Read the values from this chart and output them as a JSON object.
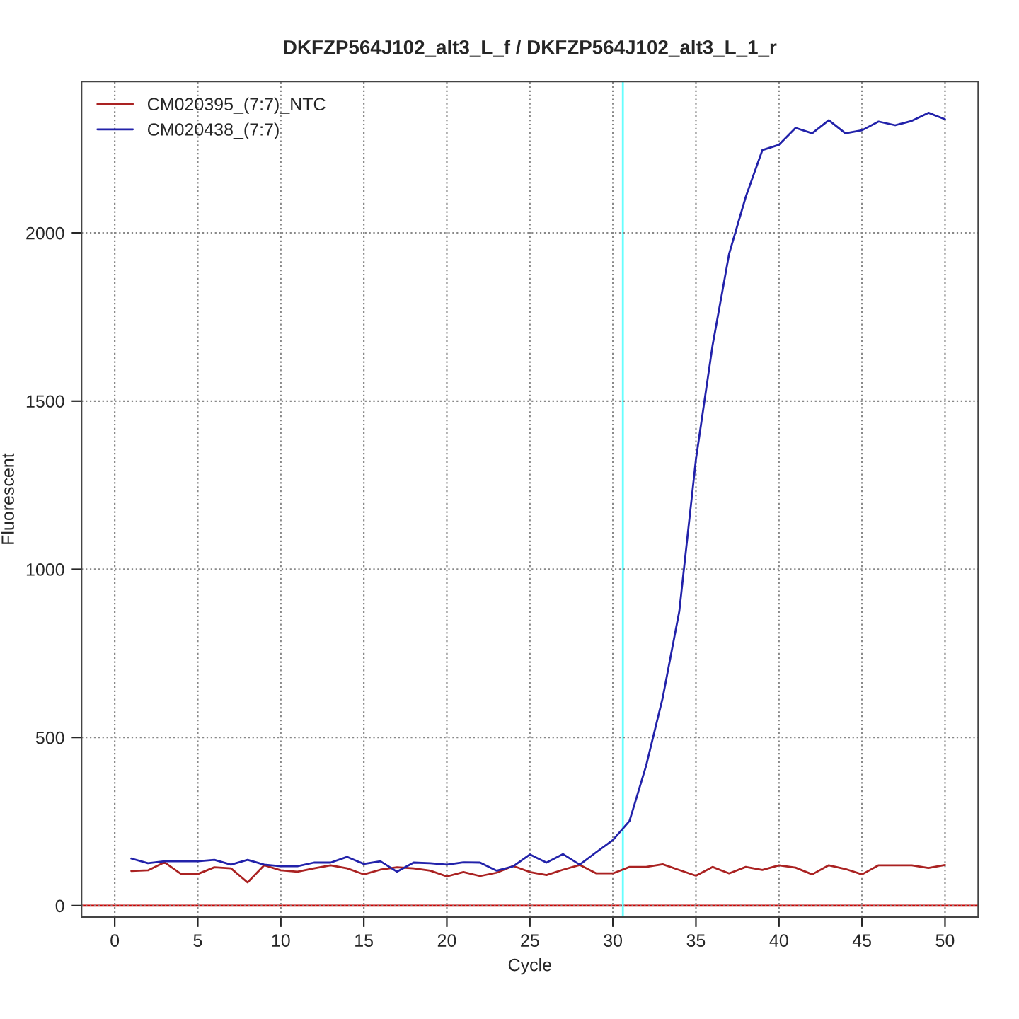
{
  "chart_data": {
    "type": "line",
    "title": "DKFZP564J102_alt3_L_f / DKFZP564J102_alt3_L_1_r",
    "xlabel": "Cycle",
    "ylabel": "Fluorescent",
    "x": [
      1,
      2,
      3,
      4,
      5,
      6,
      7,
      8,
      9,
      10,
      11,
      12,
      13,
      14,
      15,
      16,
      17,
      18,
      19,
      20,
      21,
      22,
      23,
      24,
      25,
      26,
      27,
      28,
      29,
      30,
      31,
      32,
      33,
      34,
      35,
      36,
      37,
      38,
      39,
      40,
      41,
      42,
      43,
      44,
      45,
      46,
      47,
      48,
      49,
      50
    ],
    "series": [
      {
        "name": "CM020395_(7:7)_NTC",
        "color": "#aa2222",
        "values": [
          103,
          105,
          129,
          94,
          94,
          114,
          111,
          69,
          120,
          105,
          101,
          111,
          120,
          111,
          93,
          107,
          114,
          111,
          104,
          87,
          100,
          88,
          98,
          118,
          100,
          91,
          107,
          121,
          96,
          96,
          115,
          115,
          123,
          106,
          89,
          115,
          96,
          115,
          106,
          120,
          113,
          93,
          120,
          109,
          93,
          120,
          120,
          120,
          112,
          121
        ]
      },
      {
        "name": "CM020438_(7:7)",
        "color": "#2222aa",
        "values": [
          140,
          126,
          132,
          132,
          132,
          136,
          122,
          136,
          122,
          117,
          117,
          128,
          128,
          145,
          124,
          132,
          101,
          128,
          126,
          122,
          129,
          128,
          104,
          117,
          152,
          128,
          153,
          122,
          159,
          195,
          252,
          416,
          618,
          876,
          1327,
          1665,
          1938,
          2107,
          2246,
          2262,
          2312,
          2296,
          2335,
          2296,
          2305,
          2331,
          2320,
          2333,
          2357,
          2338
        ]
      }
    ],
    "xlim": [
      -2,
      52
    ],
    "xticks": [
      0,
      5,
      10,
      15,
      20,
      25,
      30,
      35,
      40,
      45,
      50
    ],
    "ylim": [
      -34,
      2450
    ],
    "yticks": [
      0,
      500,
      1000,
      1500,
      2000
    ],
    "ref_lines": [
      {
        "axis": "y",
        "value": 0,
        "color": "#cc0000",
        "line_style": "solid"
      },
      {
        "axis": "x",
        "value": 30.6,
        "color": "#66ffff",
        "line_style": "solid"
      }
    ],
    "grid": true,
    "legend": "top left",
    "line_style": "solid",
    "marker": "none"
  }
}
